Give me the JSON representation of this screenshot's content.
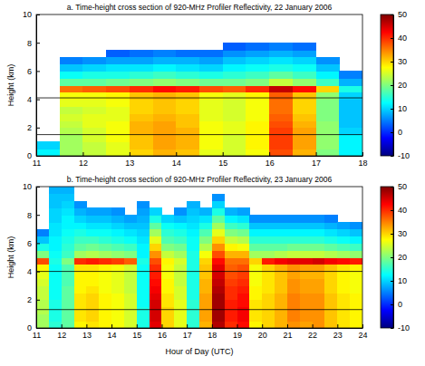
{
  "chart_data": [
    {
      "type": "heatmap",
      "title": "a. Time-height cross section of 920-MHz Profiler Reflectivity, 22 January 2006",
      "ylabel": "Height (km)",
      "xlim": [
        11,
        18
      ],
      "xticks": [
        11,
        12,
        13,
        14,
        15,
        16,
        17,
        18
      ],
      "ylim": [
        0,
        10
      ],
      "yticks": [
        0,
        2,
        4,
        6,
        8,
        10
      ],
      "zlim": [
        -10,
        50
      ],
      "zticks": [
        -10,
        0,
        10,
        20,
        30,
        40,
        50
      ],
      "hlines": [
        4.1,
        1.5
      ],
      "x": [
        11,
        11.5,
        12,
        12.5,
        13,
        13.5,
        14,
        14.5,
        15,
        15.5,
        16,
        16.5,
        17,
        17.5,
        18
      ],
      "y": [
        0,
        0.5,
        1,
        1.5,
        2,
        2.5,
        3,
        3.5,
        4,
        4.5,
        5,
        5.5,
        6,
        6.5,
        7,
        7.5,
        8,
        8.5,
        9,
        9.5,
        10
      ],
      "cells": [
        [
          12,
          10,
          null,
          null,
          null,
          null,
          null,
          null,
          null,
          null,
          null,
          null,
          null,
          null,
          null,
          null,
          null,
          null,
          null,
          null
        ],
        [
          22,
          22,
          22,
          23,
          24,
          25,
          24,
          26,
          27,
          36,
          18,
          13,
          9,
          5,
          null,
          null,
          null,
          null,
          null,
          null
        ],
        [
          24,
          24,
          25,
          25,
          26,
          26,
          25,
          26,
          27,
          37,
          18,
          14,
          10,
          6,
          null,
          null,
          null,
          null,
          null,
          null
        ],
        [
          26,
          26,
          27,
          27,
          27,
          26,
          26,
          27,
          28,
          38,
          19,
          14,
          11,
          7,
          3,
          null,
          null,
          null,
          null,
          null
        ],
        [
          30,
          31,
          31,
          32,
          32,
          31,
          30,
          30,
          31,
          40,
          20,
          15,
          11,
          7,
          4,
          null,
          null,
          null,
          null,
          null
        ],
        [
          32,
          33,
          33,
          33,
          33,
          32,
          31,
          31,
          32,
          42,
          21,
          16,
          12,
          8,
          5,
          null,
          null,
          null,
          null,
          null
        ],
        [
          31,
          32,
          32,
          32,
          31,
          31,
          30,
          30,
          31,
          41,
          20,
          15,
          11,
          8,
          4,
          null,
          null,
          null,
          null,
          null
        ],
        [
          26,
          27,
          27,
          27,
          27,
          26,
          26,
          26,
          27,
          38,
          19,
          14,
          10,
          7,
          4,
          null,
          null,
          null,
          null,
          null
        ],
        [
          25,
          25,
          25,
          26,
          26,
          25,
          25,
          25,
          26,
          37,
          19,
          15,
          12,
          9,
          6,
          3,
          null,
          null,
          null,
          null
        ],
        [
          27,
          28,
          28,
          28,
          28,
          27,
          27,
          27,
          28,
          40,
          20,
          16,
          13,
          10,
          7,
          4,
          null,
          null,
          null,
          null
        ],
        [
          38,
          39,
          39,
          39,
          38,
          37,
          36,
          36,
          37,
          46,
          24,
          18,
          14,
          11,
          8,
          5,
          null,
          null,
          null,
          null
        ],
        [
          32,
          33,
          33,
          33,
          32,
          31,
          30,
          30,
          31,
          42,
          21,
          16,
          13,
          10,
          7,
          4,
          null,
          null,
          null,
          null
        ],
        [
          20,
          21,
          21,
          21,
          21,
          20,
          20,
          20,
          21,
          30,
          16,
          12,
          9,
          6,
          null,
          null,
          null,
          null,
          null,
          null
        ],
        [
          12,
          12,
          12,
          10,
          9,
          9,
          9,
          9,
          10,
          14,
          8,
          5,
          null,
          null,
          null,
          null,
          null,
          null,
          null,
          null
        ]
      ]
    },
    {
      "type": "heatmap",
      "title": "b. Time-height cross section of 920-MHz Profiler Reflectivity, 23 January 2006",
      "xlabel": "Hour of Day (UTC)",
      "ylabel": "Height (km)",
      "xlim": [
        11,
        24
      ],
      "xticks": [
        11,
        12,
        13,
        14,
        15,
        16,
        17,
        18,
        19,
        20,
        21,
        22,
        23,
        24
      ],
      "ylim": [
        0,
        10
      ],
      "yticks": [
        0,
        2,
        4,
        6,
        8,
        10
      ],
      "zlim": [
        -10,
        50
      ],
      "zticks": [
        -10,
        0,
        10,
        20,
        30,
        40,
        50
      ],
      "hlines": [
        4.0,
        1.3
      ],
      "x": [
        11,
        11.5,
        12,
        12.5,
        13,
        13.5,
        14,
        14.5,
        15,
        15.5,
        16,
        16.5,
        17,
        17.5,
        18,
        18.5,
        19,
        19.5,
        20,
        20.5,
        21,
        21.5,
        22,
        22.5,
        23,
        23.5,
        24
      ],
      "y": [
        0,
        0.5,
        1,
        1.5,
        2,
        2.5,
        3,
        3.5,
        4,
        4.5,
        5,
        5.5,
        6,
        6.5,
        7,
        7.5,
        8,
        8.5,
        9,
        9.5,
        10
      ],
      "cells": [
        [
          22,
          22,
          23,
          23,
          24,
          24,
          25,
          26,
          28,
          38,
          20,
          14,
          9,
          5,
          null,
          null,
          null,
          null,
          null,
          null
        ],
        [
          15,
          14,
          14,
          14,
          13,
          13,
          13,
          13,
          13,
          14,
          13,
          12,
          12,
          11,
          11,
          10,
          10,
          9,
          9,
          8
        ],
        [
          18,
          18,
          18,
          18,
          18,
          18,
          17,
          17,
          17,
          20,
          16,
          15,
          14,
          13,
          12,
          12,
          11,
          10,
          9,
          8
        ],
        [
          28,
          29,
          29,
          29,
          29,
          28,
          28,
          28,
          29,
          40,
          22,
          18,
          16,
          14,
          12,
          10,
          8,
          6,
          null,
          null
        ],
        [
          29,
          30,
          30,
          30,
          30,
          29,
          28,
          28,
          29,
          41,
          23,
          19,
          16,
          13,
          11,
          9,
          7,
          null,
          null,
          null
        ],
        [
          28,
          28,
          28,
          28,
          28,
          27,
          27,
          27,
          28,
          40,
          22,
          18,
          15,
          13,
          11,
          9,
          7,
          null,
          null,
          null
        ],
        [
          27,
          27,
          27,
          27,
          27,
          26,
          26,
          26,
          27,
          39,
          21,
          17,
          14,
          12,
          10,
          8,
          6,
          null,
          null,
          null
        ],
        [
          25,
          25,
          25,
          25,
          25,
          24,
          24,
          24,
          25,
          37,
          20,
          16,
          13,
          11,
          9,
          7,
          null,
          null,
          null,
          null
        ],
        [
          14,
          14,
          14,
          13,
          13,
          13,
          13,
          13,
          13,
          14,
          12,
          12,
          11,
          10,
          9,
          8,
          7,
          6,
          null,
          null
        ],
        [
          44,
          45,
          45,
          45,
          44,
          43,
          42,
          41,
          40,
          38,
          34,
          30,
          26,
          22,
          18,
          14,
          10,
          null,
          null,
          null
        ],
        [
          30,
          30,
          30,
          29,
          29,
          28,
          28,
          27,
          27,
          28,
          24,
          20,
          17,
          15,
          13,
          10,
          null,
          null,
          null,
          null
        ],
        [
          26,
          26,
          26,
          26,
          25,
          25,
          24,
          24,
          24,
          25,
          22,
          19,
          16,
          14,
          12,
          9,
          6,
          null,
          null,
          null
        ],
        [
          15,
          15,
          15,
          15,
          14,
          14,
          14,
          14,
          14,
          14,
          14,
          13,
          13,
          12,
          11,
          10,
          9,
          8,
          null,
          null
        ],
        [
          32,
          33,
          33,
          33,
          33,
          32,
          32,
          31,
          31,
          30,
          27,
          23,
          20,
          17,
          14,
          11,
          8,
          null,
          null,
          null
        ],
        [
          47,
          48,
          48,
          48,
          48,
          47,
          46,
          45,
          44,
          42,
          38,
          34,
          30,
          26,
          22,
          18,
          14,
          10,
          6,
          null
        ],
        [
          40,
          41,
          41,
          41,
          40,
          40,
          39,
          38,
          37,
          36,
          32,
          28,
          24,
          20,
          16,
          12,
          8,
          null,
          null,
          null
        ],
        [
          42,
          43,
          43,
          42,
          42,
          41,
          40,
          39,
          38,
          36,
          32,
          27,
          23,
          19,
          15,
          11,
          7,
          null,
          null,
          null
        ],
        [
          28,
          29,
          29,
          29,
          28,
          28,
          27,
          27,
          27,
          30,
          22,
          18,
          15,
          12,
          9,
          6,
          null,
          null,
          null,
          null
        ],
        [
          30,
          30,
          30,
          30,
          30,
          29,
          29,
          29,
          30,
          41,
          22,
          18,
          15,
          12,
          9,
          6,
          null,
          null,
          null,
          null
        ],
        [
          32,
          32,
          32,
          32,
          32,
          31,
          31,
          31,
          32,
          43,
          23,
          18,
          15,
          12,
          9,
          6,
          null,
          null,
          null,
          null
        ],
        [
          34,
          35,
          35,
          35,
          35,
          34,
          34,
          33,
          34,
          44,
          24,
          19,
          15,
          12,
          9,
          6,
          null,
          null,
          null,
          null
        ],
        [
          33,
          34,
          34,
          34,
          34,
          33,
          33,
          32,
          33,
          44,
          24,
          19,
          15,
          12,
          9,
          6,
          null,
          null,
          null,
          null
        ],
        [
          34,
          34,
          34,
          34,
          34,
          33,
          33,
          32,
          33,
          45,
          24,
          19,
          15,
          12,
          9,
          6,
          null,
          null,
          null,
          null
        ],
        [
          31,
          31,
          31,
          31,
          31,
          30,
          30,
          30,
          31,
          43,
          23,
          18,
          14,
          11,
          8,
          5,
          null,
          null,
          null,
          null
        ],
        [
          29,
          29,
          29,
          29,
          29,
          28,
          28,
          28,
          29,
          42,
          22,
          17,
          13,
          10,
          7,
          null,
          null,
          null,
          null,
          null
        ],
        [
          28,
          28,
          28,
          28,
          28,
          27,
          27,
          27,
          28,
          41,
          21,
          16,
          12,
          9,
          6,
          null,
          null,
          null,
          null,
          null
        ]
      ]
    }
  ]
}
